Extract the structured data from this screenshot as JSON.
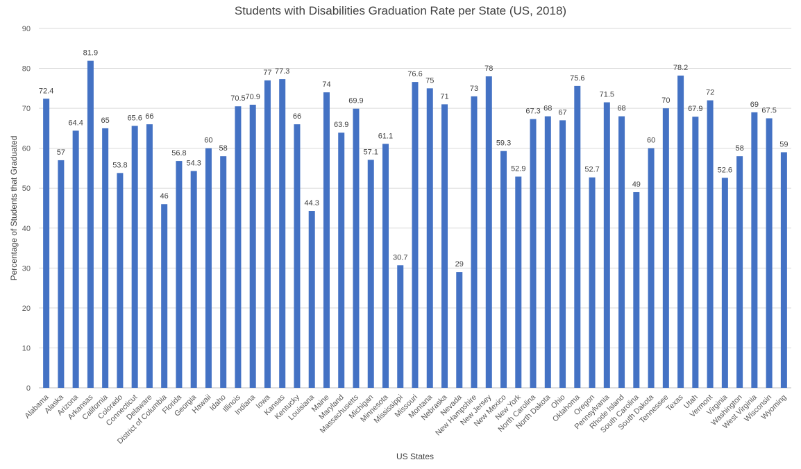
{
  "chart_data": {
    "type": "bar",
    "title": "Students with Disabilities Graduation Rate per State (US, 2018)",
    "xlabel": "US States",
    "ylabel": "Percentage of Students that Graduated",
    "ylim": [
      0,
      90
    ],
    "yticks": [
      0,
      10,
      20,
      30,
      40,
      50,
      60,
      70,
      80,
      90
    ],
    "grid": true,
    "legend": "none",
    "bar_color": "#4472C4",
    "categories": [
      "Alabama",
      "Alaska",
      "Arizona",
      "Arkansas",
      "California",
      "Colorado",
      "Connecticut",
      "Delaware",
      "District of Columbia",
      "Florida",
      "Georgia",
      "Hawaii",
      "Idaho",
      "Illinois",
      "Indiana",
      "Iowa",
      "Kansas",
      "Kentucky",
      "Louisiana",
      "Maine",
      "Maryland",
      "Massachusetts",
      "Michigan",
      "Minnesota",
      "Mississippi",
      "Missouri",
      "Montana",
      "Nebraska",
      "Nevada",
      "New Hampshire",
      "New Jersey",
      "New Mexico",
      "New York",
      "North Carolina",
      "North Dakota",
      "Ohio",
      "Oklahoma",
      "Oregon",
      "Pennsylvania",
      "Rhode Island",
      "South Carolina",
      "South Dakota",
      "Tennessee",
      "Texas",
      "Utah",
      "Vermont",
      "Virginia",
      "Washington",
      "West Virginia",
      "Wisconsin",
      "Wyoming"
    ],
    "values": [
      72.4,
      57,
      64.4,
      81.9,
      65,
      53.8,
      65.6,
      66,
      46,
      56.8,
      54.3,
      60,
      58,
      70.5,
      70.9,
      77,
      77.3,
      66,
      44.3,
      74,
      63.9,
      69.9,
      57.1,
      61.1,
      30.7,
      76.6,
      75,
      71,
      29,
      73,
      78,
      59.3,
      52.9,
      67.3,
      68,
      67,
      75.6,
      52.7,
      71.5,
      68,
      49,
      60,
      70,
      78.2,
      67.9,
      72,
      52.6,
      58,
      69,
      67.5,
      59
    ]
  }
}
